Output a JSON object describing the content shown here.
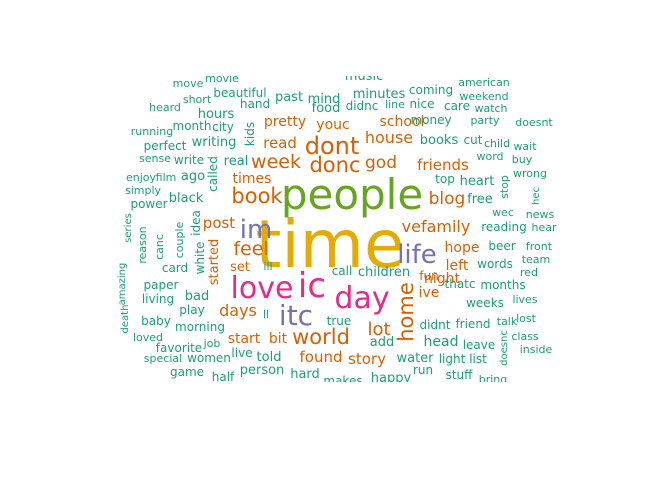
{
  "chart_data": {
    "type": "wordcloud",
    "colors": {
      "teal": "#1b9e77",
      "orange": "#d95f02",
      "purple": "#7570b3",
      "magenta": "#e7298a",
      "green": "#66a61e",
      "gold": "#e6ab02"
    },
    "words": [
      {
        "text": "time",
        "color": "gold"
      },
      {
        "text": "people",
        "color": "green"
      },
      {
        "text": "ic",
        "color": "magenta"
      },
      {
        "text": "day",
        "color": "magenta"
      },
      {
        "text": "love",
        "color": "magenta"
      },
      {
        "text": "itc",
        "color": "purple"
      },
      {
        "text": "im",
        "color": "purple"
      },
      {
        "text": "life",
        "color": "purple"
      },
      {
        "text": "dont",
        "color": "orange"
      },
      {
        "text": "home",
        "color": "orange"
      },
      {
        "text": "world",
        "color": "orange"
      },
      {
        "text": "book",
        "color": "orange"
      },
      {
        "text": "donc",
        "color": "orange"
      },
      {
        "text": "week",
        "color": "orange"
      },
      {
        "text": "feel",
        "color": "orange"
      },
      {
        "text": "lot",
        "color": "orange"
      },
      {
        "text": "god",
        "color": "orange"
      },
      {
        "text": "blog",
        "color": "orange"
      },
      {
        "text": "vefamily",
        "color": "orange"
      },
      {
        "text": "house",
        "color": "orange"
      },
      {
        "text": "friends",
        "color": "orange"
      },
      {
        "text": "days",
        "color": "orange"
      },
      {
        "text": "found",
        "color": "orange"
      },
      {
        "text": "story",
        "color": "orange"
      },
      {
        "text": "start",
        "color": "orange"
      },
      {
        "text": "bit",
        "color": "orange"
      },
      {
        "text": "post",
        "color": "orange"
      },
      {
        "text": "read",
        "color": "orange"
      },
      {
        "text": "school",
        "color": "orange"
      },
      {
        "text": "youc",
        "color": "orange"
      },
      {
        "text": "pretty",
        "color": "orange"
      },
      {
        "text": "times",
        "color": "orange"
      },
      {
        "text": "night",
        "color": "orange"
      },
      {
        "text": "hope",
        "color": "orange"
      },
      {
        "text": "left",
        "color": "orange"
      },
      {
        "text": "ive",
        "color": "orange"
      },
      {
        "text": "fun",
        "color": "orange"
      },
      {
        "text": "set",
        "color": "orange"
      },
      {
        "text": "started",
        "color": "orange"
      },
      {
        "text": "mind",
        "color": "teal"
      },
      {
        "text": "food",
        "color": "teal"
      },
      {
        "text": "past",
        "color": "teal"
      },
      {
        "text": "minutes",
        "color": "teal"
      },
      {
        "text": "didnc",
        "color": "teal"
      },
      {
        "text": "line",
        "color": "teal"
      },
      {
        "text": "nice",
        "color": "teal"
      },
      {
        "text": "coming",
        "color": "teal"
      },
      {
        "text": "music",
        "color": "teal"
      },
      {
        "text": "money",
        "color": "teal"
      },
      {
        "text": "party",
        "color": "teal"
      },
      {
        "text": "care",
        "color": "teal"
      },
      {
        "text": "watch",
        "color": "teal"
      },
      {
        "text": "american",
        "color": "teal"
      },
      {
        "text": "weekend",
        "color": "teal"
      },
      {
        "text": "doesnt",
        "color": "teal"
      },
      {
        "text": "books",
        "color": "teal"
      },
      {
        "text": "cut",
        "color": "teal"
      },
      {
        "text": "child",
        "color": "teal"
      },
      {
        "text": "wait",
        "color": "teal"
      },
      {
        "text": "word",
        "color": "teal"
      },
      {
        "text": "buy",
        "color": "teal"
      },
      {
        "text": "stop",
        "color": "teal"
      },
      {
        "text": "wrong",
        "color": "teal"
      },
      {
        "text": "top",
        "color": "teal"
      },
      {
        "text": "heart",
        "color": "teal"
      },
      {
        "text": "hec",
        "color": "teal"
      },
      {
        "text": "free",
        "color": "teal"
      },
      {
        "text": "news",
        "color": "teal"
      },
      {
        "text": "wec",
        "color": "teal"
      },
      {
        "text": "hear",
        "color": "teal"
      },
      {
        "text": "reading",
        "color": "teal"
      },
      {
        "text": "beer",
        "color": "teal"
      },
      {
        "text": "front",
        "color": "teal"
      },
      {
        "text": "team",
        "color": "teal"
      },
      {
        "text": "words",
        "color": "teal"
      },
      {
        "text": "red",
        "color": "teal"
      },
      {
        "text": "thatc",
        "color": "teal"
      },
      {
        "text": "months",
        "color": "teal"
      },
      {
        "text": "weeks",
        "color": "teal"
      },
      {
        "text": "lives",
        "color": "teal"
      },
      {
        "text": "didnt",
        "color": "teal"
      },
      {
        "text": "friend",
        "color": "teal"
      },
      {
        "text": "talk",
        "color": "teal"
      },
      {
        "text": "lost",
        "color": "teal"
      },
      {
        "text": "class",
        "color": "teal"
      },
      {
        "text": "head",
        "color": "teal"
      },
      {
        "text": "leave",
        "color": "teal"
      },
      {
        "text": "doesnc",
        "color": "teal"
      },
      {
        "text": "inside",
        "color": "teal"
      },
      {
        "text": "light",
        "color": "teal"
      },
      {
        "text": "list",
        "color": "teal"
      },
      {
        "text": "water",
        "color": "teal"
      },
      {
        "text": "add",
        "color": "teal"
      },
      {
        "text": "run",
        "color": "teal"
      },
      {
        "text": "stuff",
        "color": "teal"
      },
      {
        "text": "bring",
        "color": "teal"
      },
      {
        "text": "happy",
        "color": "teal"
      },
      {
        "text": "makes",
        "color": "teal"
      },
      {
        "text": "hard",
        "color": "teal"
      },
      {
        "text": "true",
        "color": "teal"
      },
      {
        "text": "children",
        "color": "teal"
      },
      {
        "text": "call",
        "color": "teal"
      },
      {
        "text": "told",
        "color": "teal"
      },
      {
        "text": "person",
        "color": "teal"
      },
      {
        "text": "live",
        "color": "teal"
      },
      {
        "text": "ill",
        "color": "teal"
      },
      {
        "text": "ll",
        "color": "teal"
      },
      {
        "text": "women",
        "color": "teal"
      },
      {
        "text": "half",
        "color": "teal"
      },
      {
        "text": "game",
        "color": "teal"
      },
      {
        "text": "special",
        "color": "teal"
      },
      {
        "text": "job",
        "color": "teal"
      },
      {
        "text": "morning",
        "color": "teal"
      },
      {
        "text": "favorite",
        "color": "teal"
      },
      {
        "text": "loved",
        "color": "teal"
      },
      {
        "text": "death",
        "color": "teal"
      },
      {
        "text": "baby",
        "color": "teal"
      },
      {
        "text": "play",
        "color": "teal"
      },
      {
        "text": "bad",
        "color": "teal"
      },
      {
        "text": "living",
        "color": "teal"
      },
      {
        "text": "paper",
        "color": "teal"
      },
      {
        "text": "amazing",
        "color": "teal"
      },
      {
        "text": "card",
        "color": "teal"
      },
      {
        "text": "canc",
        "color": "teal"
      },
      {
        "text": "couple",
        "color": "teal"
      },
      {
        "text": "reason",
        "color": "teal"
      },
      {
        "text": "series",
        "color": "teal"
      },
      {
        "text": "white",
        "color": "teal"
      },
      {
        "text": "idea",
        "color": "teal"
      },
      {
        "text": "power",
        "color": "teal"
      },
      {
        "text": "simply",
        "color": "teal"
      },
      {
        "text": "enjoy",
        "color": "teal"
      },
      {
        "text": "film",
        "color": "teal"
      },
      {
        "text": "black",
        "color": "teal"
      },
      {
        "text": "ago",
        "color": "teal"
      },
      {
        "text": "called",
        "color": "teal"
      },
      {
        "text": "real",
        "color": "teal"
      },
      {
        "text": "write",
        "color": "teal"
      },
      {
        "text": "sense",
        "color": "teal"
      },
      {
        "text": "perfect",
        "color": "teal"
      },
      {
        "text": "writing",
        "color": "teal"
      },
      {
        "text": "kids",
        "color": "teal"
      },
      {
        "text": "running",
        "color": "teal"
      },
      {
        "text": "month",
        "color": "teal"
      },
      {
        "text": "city",
        "color": "teal"
      },
      {
        "text": "hours",
        "color": "teal"
      },
      {
        "text": "heard",
        "color": "teal"
      },
      {
        "text": "short",
        "color": "teal"
      },
      {
        "text": "hand",
        "color": "teal"
      },
      {
        "text": "beautiful",
        "color": "teal"
      },
      {
        "text": "move",
        "color": "teal"
      },
      {
        "text": "movie",
        "color": "teal"
      }
    ]
  }
}
